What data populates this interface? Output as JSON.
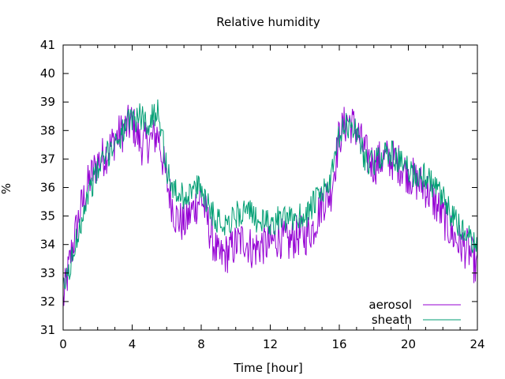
{
  "chart_data": {
    "type": "line",
    "title": "Relative humidity",
    "xlabel": "Time [hour]",
    "ylabel": "%",
    "xlim": [
      0,
      24
    ],
    "ylim": [
      31,
      41
    ],
    "x_ticks": [
      0,
      4,
      8,
      12,
      16,
      20,
      24
    ],
    "y_ticks": [
      31,
      32,
      33,
      34,
      35,
      36,
      37,
      38,
      39,
      40,
      41
    ],
    "grid": false,
    "legend_position": "bottom-right",
    "series": [
      {
        "name": "aerosol",
        "color": "#9400d3",
        "x": [
          0,
          0.5,
          1,
          1.5,
          2,
          2.5,
          3,
          3.5,
          4,
          4.5,
          5,
          5.5,
          6,
          6.5,
          7,
          7.5,
          8,
          8.5,
          9,
          9.5,
          10,
          10.5,
          11,
          11.5,
          12,
          12.5,
          13,
          13.5,
          14,
          14.5,
          15,
          15.5,
          16,
          16.5,
          17,
          17.5,
          18,
          18.5,
          19,
          19.5,
          20,
          20.5,
          21,
          21.5,
          22,
          22.5,
          23,
          23.5,
          24
        ],
        "y": [
          32.0,
          33.8,
          35.2,
          36.2,
          36.9,
          37.2,
          37.7,
          38.0,
          38.3,
          37.5,
          37.6,
          37.9,
          36.2,
          35.0,
          34.7,
          35.2,
          35.7,
          34.5,
          33.5,
          33.7,
          34.0,
          34.2,
          33.8,
          34.0,
          34.0,
          34.3,
          34.0,
          34.3,
          34.3,
          34.6,
          35.5,
          35.8,
          37.8,
          38.4,
          38.0,
          37.2,
          36.8,
          37.0,
          37.0,
          36.8,
          36.5,
          36.2,
          36.0,
          35.5,
          35.0,
          34.4,
          34.0,
          33.8,
          33.1
        ]
      },
      {
        "name": "sheath",
        "color": "#009e73",
        "x": [
          0,
          0.5,
          1,
          1.5,
          2,
          2.5,
          3,
          3.5,
          4,
          4.5,
          5,
          5.5,
          6,
          6.5,
          7,
          7.5,
          8,
          8.5,
          9,
          9.5,
          10,
          10.5,
          11,
          11.5,
          12,
          12.5,
          13,
          13.5,
          14,
          14.5,
          15,
          15.5,
          16,
          16.5,
          17,
          17.5,
          18,
          18.5,
          19,
          19.5,
          20,
          20.5,
          21,
          21.5,
          22,
          22.5,
          23,
          23.5,
          24
        ],
        "y": [
          32.4,
          33.4,
          34.8,
          35.9,
          36.6,
          37.1,
          37.6,
          38.0,
          38.4,
          38.5,
          38.2,
          38.9,
          36.6,
          35.8,
          35.7,
          35.9,
          36.0,
          35.3,
          34.8,
          34.8,
          35.0,
          35.2,
          35.0,
          34.8,
          34.7,
          34.9,
          34.8,
          35.0,
          35.0,
          35.4,
          35.8,
          36.2,
          37.8,
          38.2,
          38.0,
          37.0,
          36.8,
          37.2,
          37.2,
          36.9,
          36.6,
          36.4,
          36.4,
          36.0,
          35.6,
          35.0,
          34.6,
          34.2,
          33.9
        ]
      }
    ]
  }
}
